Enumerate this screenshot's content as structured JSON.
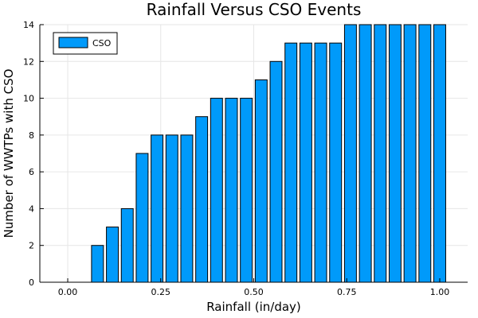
{
  "chart_data": {
    "type": "bar",
    "title": "Rainfall Versus CSO Events",
    "xlabel": "Rainfall (in/day)",
    "ylabel": "Number of WWTPs with CSO",
    "xlim": [
      -0.075,
      1.075
    ],
    "ylim": [
      0,
      14
    ],
    "xticks": [
      0.0,
      0.25,
      0.5,
      0.75,
      1.0
    ],
    "xtick_labels": [
      "0.00",
      "0.25",
      "0.50",
      "0.75",
      "1.00"
    ],
    "yticks": [
      0,
      2,
      4,
      6,
      8,
      10,
      12,
      14
    ],
    "ytick_labels": [
      "0",
      "2",
      "4",
      "6",
      "8",
      "10",
      "12",
      "14"
    ],
    "grid": true,
    "legend_position": "top-left",
    "bar_width": 0.032,
    "series": [
      {
        "name": "CSO",
        "color": "#009AFA",
        "x": [
          0.0,
          0.04,
          0.08,
          0.12,
          0.16,
          0.2,
          0.24,
          0.28,
          0.32,
          0.36,
          0.4,
          0.44,
          0.48,
          0.52,
          0.56,
          0.6,
          0.64,
          0.68,
          0.72,
          0.76,
          0.8,
          0.84,
          0.88,
          0.92,
          0.96,
          1.0
        ],
        "values": [
          0,
          0,
          2,
          3,
          4,
          7,
          8,
          8,
          8,
          9,
          10,
          10,
          10,
          11,
          12,
          13,
          13,
          13,
          13,
          14,
          14,
          14,
          14,
          14,
          14,
          14
        ]
      }
    ]
  }
}
